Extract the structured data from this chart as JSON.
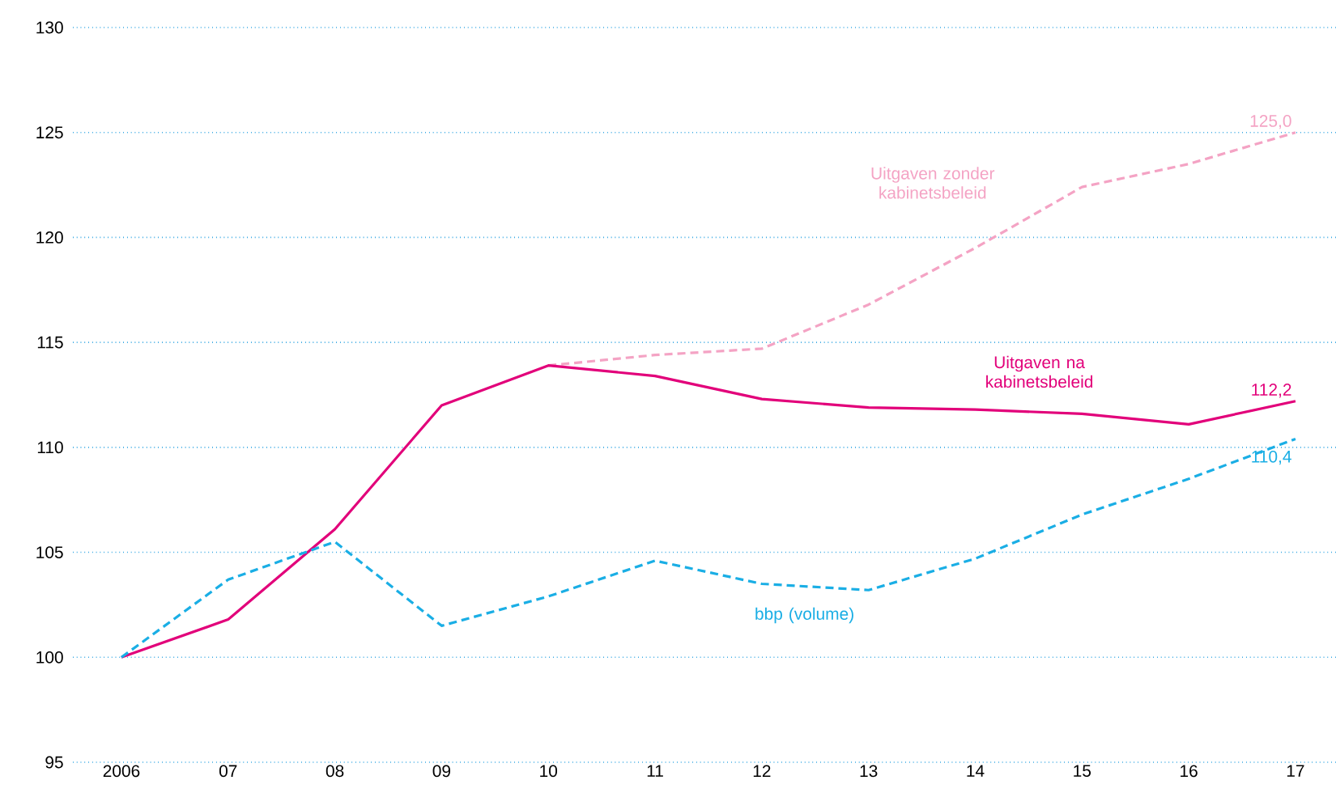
{
  "chart_data": {
    "type": "line",
    "categories": [
      "2006",
      "07",
      "08",
      "09",
      "10",
      "11",
      "12",
      "13",
      "14",
      "15",
      "16",
      "17"
    ],
    "ylim": [
      95,
      130
    ],
    "yticks": [
      95,
      100,
      105,
      110,
      115,
      120,
      125,
      130
    ],
    "grid": "y",
    "marker": "none",
    "series": [
      {
        "name": "Uitgaven zonder kabinetsbeleid",
        "color": "#f4a3c4",
        "line_style": "dashed",
        "values": [
          null,
          null,
          null,
          null,
          113.9,
          114.4,
          114.7,
          116.8,
          119.5,
          122.4,
          123.5,
          125.0
        ],
        "value_labels": [
          null,
          null,
          null,
          null,
          null,
          null,
          null,
          null,
          null,
          null,
          null,
          "125,0"
        ]
      },
      {
        "name": "Uitgaven na kabinetsbeleid",
        "color": "#e2007a",
        "line_style": "solid",
        "values": [
          100,
          101.8,
          106.1,
          112.0,
          113.9,
          113.4,
          112.3,
          111.9,
          111.8,
          111.6,
          111.1,
          112.2
        ],
        "value_labels": [
          null,
          null,
          null,
          null,
          null,
          null,
          null,
          null,
          null,
          null,
          null,
          "112,2"
        ]
      },
      {
        "name": "bbp (volume)",
        "color": "#1aaee5",
        "line_style": "dashed",
        "values": [
          100,
          103.7,
          105.5,
          101.5,
          102.9,
          104.6,
          103.5,
          103.2,
          104.7,
          106.8,
          108.5,
          110.4
        ],
        "value_labels": [
          null,
          null,
          null,
          null,
          null,
          null,
          null,
          null,
          null,
          null,
          null,
          "110,4"
        ]
      }
    ]
  }
}
